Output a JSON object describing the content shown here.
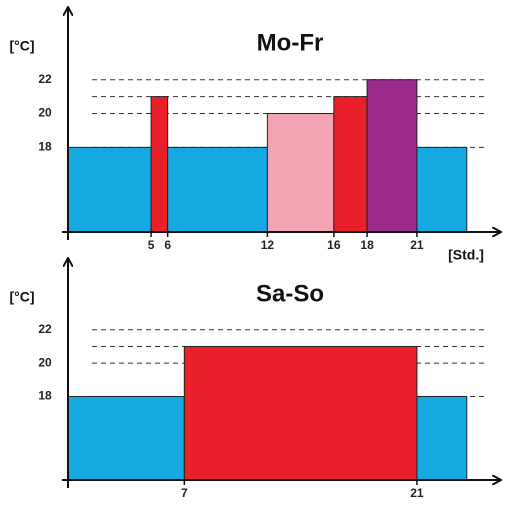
{
  "chart_data": [
    {
      "type": "histogram",
      "title": "Mo-Fr",
      "ylabel": "[°C]",
      "xlabel": "[Std.]",
      "bins": [
        0,
        5,
        6,
        12,
        16,
        18,
        21,
        24
      ],
      "values": [
        18,
        21,
        18,
        20,
        21,
        22,
        18
      ],
      "colors": [
        "#17a9e1",
        "#e8202a",
        "#17a9e1",
        "#f4a3b2",
        "#e8202a",
        "#9b2a8a",
        "#17a9e1"
      ],
      "xlim": [
        0,
        26
      ],
      "ylim": [
        13,
        26
      ],
      "xticks": [
        5,
        6,
        12,
        16,
        18,
        21
      ],
      "yticks": [
        18,
        20,
        22
      ],
      "grid": true
    },
    {
      "type": "histogram",
      "title": "Sa-So",
      "ylabel": "[°C]",
      "bins": [
        0,
        7,
        21,
        24
      ],
      "values": [
        18,
        21,
        18
      ],
      "colors": [
        "#17a9e1",
        "#e8202a",
        "#17a9e1"
      ],
      "xlim": [
        0,
        26
      ],
      "ylim": [
        13,
        26
      ],
      "xticks": [
        7,
        21
      ],
      "yticks": [
        18,
        20,
        22
      ],
      "grid": true
    }
  ]
}
